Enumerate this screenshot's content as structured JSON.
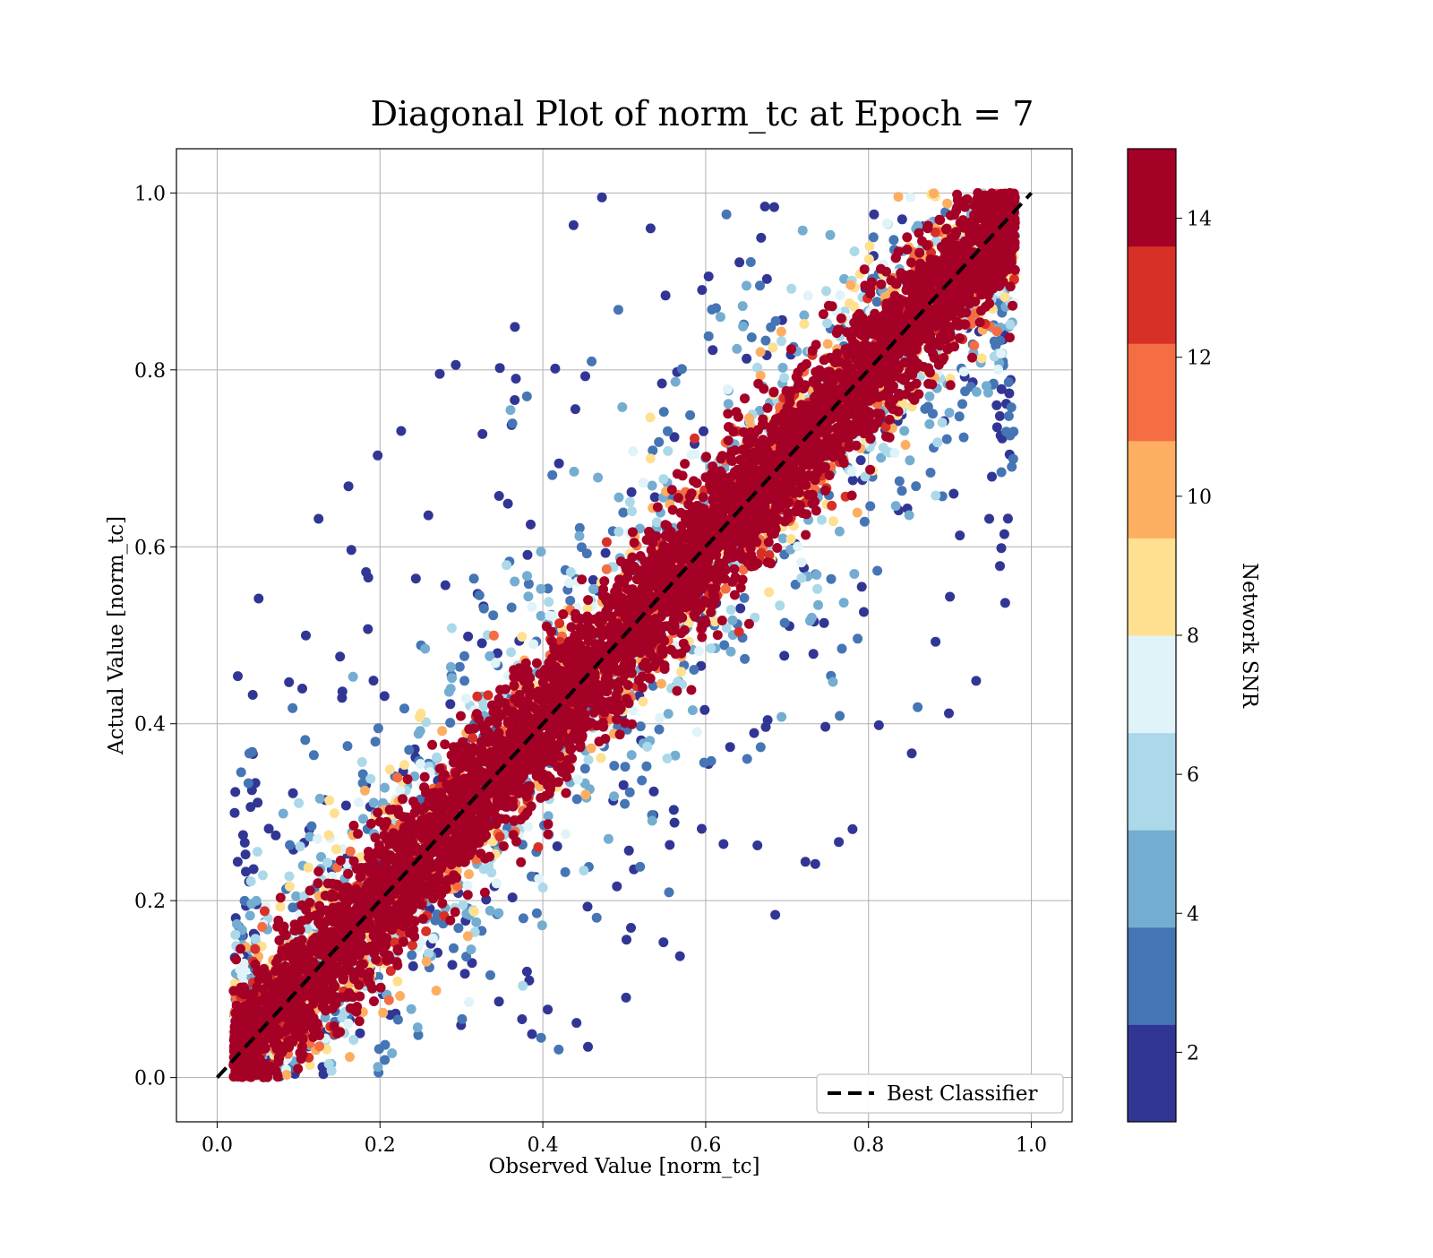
{
  "chart_data": {
    "type": "scatter",
    "title": "Diagonal Plot of norm_tc at Epoch = 7",
    "xlabel": "Observed Value [norm_tc]",
    "ylabel": "Actual Value [norm_tc]",
    "xlim": [
      -0.05,
      1.05
    ],
    "ylim": [
      -0.05,
      1.05
    ],
    "xticks": [
      "0.0",
      "0.2",
      "0.4",
      "0.6",
      "0.8",
      "1.0"
    ],
    "yticks": [
      "0.0",
      "0.2",
      "0.4",
      "0.6",
      "0.8",
      "1.0"
    ],
    "grid": true,
    "reference_line": {
      "label": "Best Classifier",
      "x": [
        0,
        1
      ],
      "y": [
        0,
        1
      ],
      "style": "dashed",
      "color": "#000000"
    },
    "legend_placement": "lower-right",
    "colorbar": {
      "label": "Network SNR",
      "range": [
        1,
        15
      ],
      "ticks": [
        "2",
        "4",
        "6",
        "8",
        "10",
        "12",
        "14"
      ],
      "colors": [
        "#313695",
        "#4575b4",
        "#74add1",
        "#abd9e9",
        "#e0f3f8",
        "#fee090",
        "#fdae61",
        "#f46d43",
        "#d73027",
        "#a50026"
      ]
    },
    "point_cloud": {
      "description_of_density": "dense high-SNR points along the diagonal, low-SNR points spread further from diagonal",
      "approx_point_count_drawn": 9000
    }
  }
}
